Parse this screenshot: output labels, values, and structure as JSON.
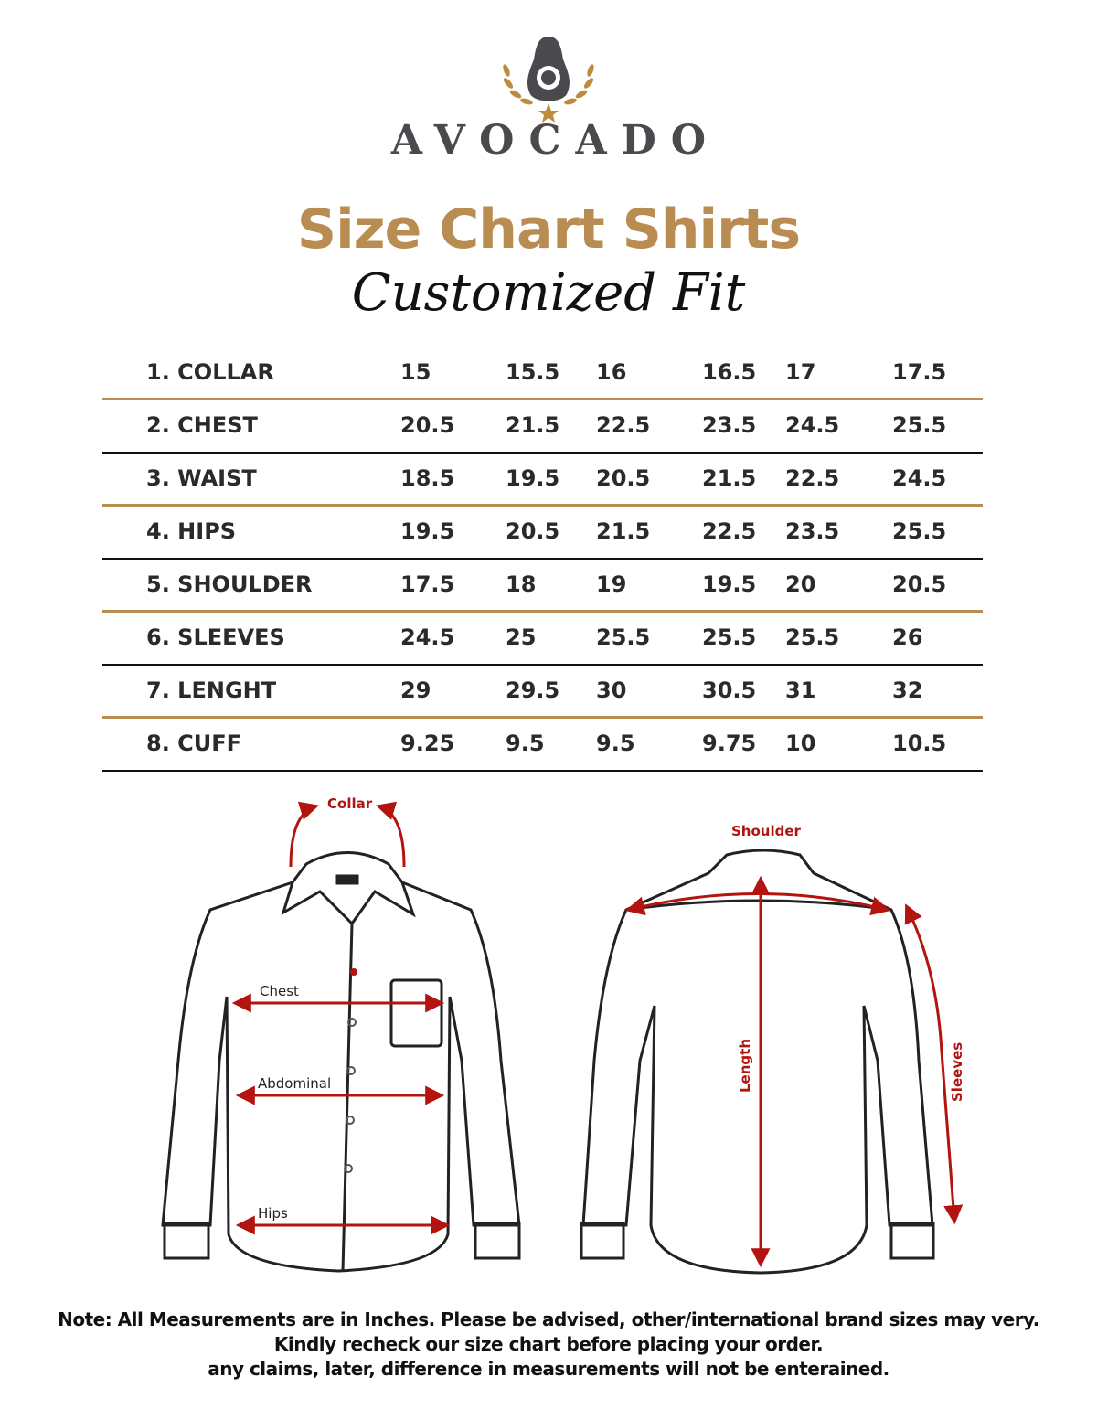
{
  "brand": {
    "name": "AVOCADO",
    "colors": {
      "gold": "#b98d52",
      "grey": "#4a4a4e"
    }
  },
  "title": "Size Chart Shirts",
  "subtitle": "Customized Fit",
  "table": {
    "rows": [
      {
        "label": "1. COLLAR",
        "values": [
          "15",
          "15.5",
          "16",
          "16.5",
          "17",
          "17.5"
        ]
      },
      {
        "label": "2. CHEST",
        "values": [
          "20.5",
          "21.5",
          "22.5",
          "23.5",
          "24.5",
          "25.5"
        ]
      },
      {
        "label": "3. WAIST",
        "values": [
          "18.5",
          "19.5",
          "20.5",
          "21.5",
          "22.5",
          "24.5"
        ]
      },
      {
        "label": "4. HIPS",
        "values": [
          "19.5",
          "20.5",
          "21.5",
          "22.5",
          "23.5",
          "25.5"
        ]
      },
      {
        "label": "5. SHOULDER",
        "values": [
          "17.5",
          "18",
          "19",
          "19.5",
          "20",
          "20.5"
        ]
      },
      {
        "label": "6. SLEEVES",
        "values": [
          "24.5",
          "25",
          "25.5",
          "25.5",
          "25.5",
          "26"
        ]
      },
      {
        "label": "7. LENGHT",
        "values": [
          "29",
          "29.5",
          "30",
          "30.5",
          "31",
          "32"
        ]
      },
      {
        "label": "8. CUFF",
        "values": [
          "9.25",
          "9.5",
          "9.5",
          "9.75",
          "10",
          "10.5"
        ]
      }
    ]
  },
  "diagram": {
    "front": {
      "collar": "Collar",
      "chest": "Chest",
      "abdominal": "Abdominal",
      "hips": "Hips"
    },
    "back": {
      "shoulder": "Shoulder",
      "length": "Length",
      "sleeves": "Sleeves"
    },
    "arrow_color": "#b3140f"
  },
  "note": {
    "line1": "Note: All Measurements are in Inches. Please be advised, other/international brand sizes may very.",
    "line2": "Kindly recheck our size chart before placing your order.",
    "line3": "any claims, later, difference in measurements will not be enterained."
  }
}
